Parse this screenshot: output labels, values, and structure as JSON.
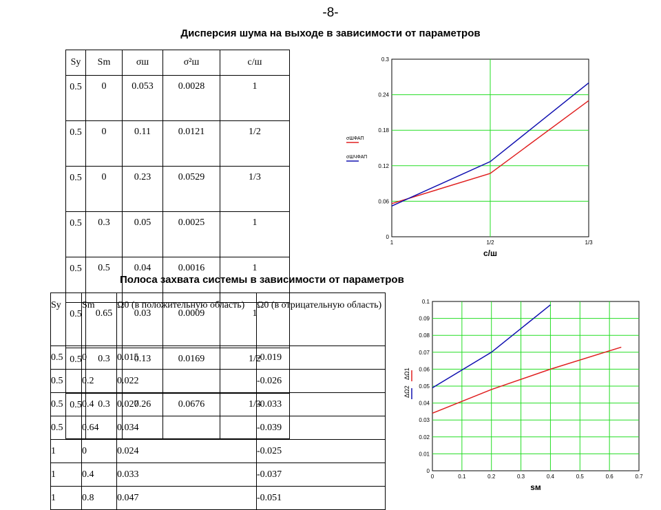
{
  "page_number": "-8-",
  "title_noise": "Дисперсия шума на выходе в зависимости от параметров",
  "title_band": "Полоса захвата системы в зависимости от параметров",
  "table1": {
    "headers": [
      "Sy",
      "Sm",
      "σш",
      "σ²ш",
      "с/ш"
    ],
    "rows": [
      [
        "0.5",
        "0",
        "0.053",
        "0.0028",
        "1"
      ],
      [
        "0.5",
        "0",
        "0.11",
        "0.0121",
        "1/2"
      ],
      [
        "0.5",
        "0",
        "0.23",
        "0.0529",
        "1/3"
      ],
      [
        "0.5",
        "0.3",
        "0.05",
        "0.0025",
        "1"
      ],
      [
        "0.5",
        "0.5",
        "0.04",
        "0.0016",
        "1"
      ],
      [
        "0.5",
        "0.65",
        "0.03",
        "0.0009",
        "1"
      ],
      [
        "0.5",
        "0.3",
        "0.13",
        "0.0169",
        "1/2"
      ],
      [
        "0.5",
        "0.3",
        "0.26",
        "0.0676",
        "1/3"
      ]
    ]
  },
  "table2": {
    "headers": [
      "Sy",
      "Sm",
      "Ω0 (в положительную область)",
      "Ω0 (в отрицательную область)"
    ],
    "rows": [
      [
        "0.5",
        "0",
        "0.015",
        "-0.019"
      ],
      [
        "0.5",
        "0.2",
        "0.022",
        "-0.026"
      ],
      [
        "0.5",
        "0.4",
        "0.027",
        "-0.033"
      ],
      [
        "0.5",
        "0.64",
        "0.034",
        "-0.039"
      ],
      [
        "1",
        "0",
        "0.024",
        "-0.025"
      ],
      [
        "1",
        "0.4",
        "0.033",
        "-0.037"
      ],
      [
        "1",
        "0.8",
        "0.047",
        "-0.051"
      ]
    ]
  },
  "chart_data": [
    {
      "type": "line",
      "xlabel": "с/ш",
      "x_ticks": [
        "1",
        "1/2",
        "1/3"
      ],
      "y_ticks": [
        "0",
        "0.06",
        "0.12",
        "0.18",
        "0.24",
        "0.3"
      ],
      "ylim": [
        0,
        0.3
      ],
      "series": [
        {
          "name": "σШФАП",
          "color": "#e02020",
          "values": [
            0.056,
            0.107,
            0.23
          ]
        },
        {
          "name": "σШЧФАП",
          "color": "#1010b0",
          "values": [
            0.052,
            0.127,
            0.26
          ]
        }
      ],
      "legend_position": "left"
    },
    {
      "type": "line",
      "xlabel": "sм",
      "x_ticks": [
        "0",
        "0.1",
        "0.2",
        "0.3",
        "0.4",
        "0.5",
        "0.6",
        "0.7"
      ],
      "y_ticks": [
        "0",
        "0.01",
        "0.02",
        "0.03",
        "0.04",
        "0.05",
        "0.06",
        "0.07",
        "0.08",
        "0.09",
        "0.1"
      ],
      "xlim": [
        0,
        0.7
      ],
      "ylim": [
        0,
        0.1
      ],
      "series": [
        {
          "name": "ΔΩ1",
          "color": "#e02020",
          "x": [
            0,
            0.2,
            0.4,
            0.64
          ],
          "y": [
            0.034,
            0.048,
            0.06,
            0.073
          ]
        },
        {
          "name": "ΔΩ2",
          "color": "#1010b0",
          "x": [
            0,
            0.2,
            0.4
          ],
          "y": [
            0.049,
            0.07,
            0.098
          ]
        }
      ],
      "legend_position": "left"
    }
  ]
}
